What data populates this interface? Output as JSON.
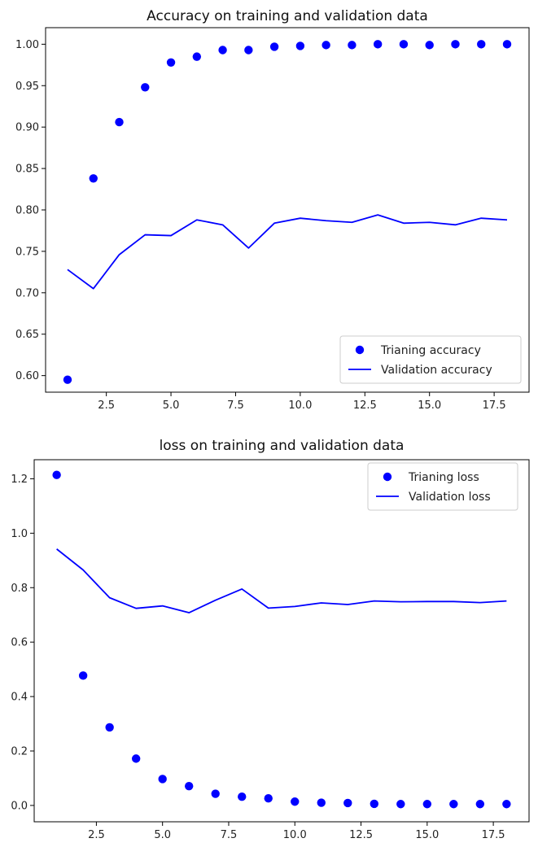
{
  "colors": {
    "series": "#0000ff",
    "axes": "#000000"
  },
  "chart_data": [
    {
      "type": "scatter+line",
      "title": "Accuracy on training and validation data",
      "xlabel": "",
      "ylabel": "",
      "xlim": [
        0.15,
        18.85
      ],
      "ylim": [
        0.58,
        1.02
      ],
      "xticks": [
        2.5,
        5.0,
        7.5,
        10.0,
        12.5,
        15.0,
        17.5
      ],
      "xtick_labels": [
        "2.5",
        "5.0",
        "7.5",
        "10.0",
        "12.5",
        "15.0",
        "17.5"
      ],
      "yticks": [
        0.6,
        0.65,
        0.7,
        0.75,
        0.8,
        0.85,
        0.9,
        0.95,
        1.0
      ],
      "ytick_labels": [
        "0.60",
        "0.65",
        "0.70",
        "0.75",
        "0.80",
        "0.85",
        "0.90",
        "0.95",
        "1.00"
      ],
      "legend_position": "lower-right",
      "series": [
        {
          "name": "Trianing accuracy",
          "style": "points",
          "x": [
            1,
            2,
            3,
            4,
            5,
            6,
            7,
            8,
            9,
            10,
            11,
            12,
            13,
            14,
            15,
            16,
            17,
            18
          ],
          "y": [
            0.595,
            0.838,
            0.906,
            0.948,
            0.978,
            0.985,
            0.993,
            0.993,
            0.997,
            0.998,
            0.999,
            0.999,
            1.0,
            1.0,
            0.999,
            1.0,
            1.0,
            1.0
          ]
        },
        {
          "name": "Validation accuracy",
          "style": "line",
          "x": [
            1,
            2,
            3,
            4,
            5,
            6,
            7,
            8,
            9,
            10,
            11,
            12,
            13,
            14,
            15,
            16,
            17,
            18
          ],
          "y": [
            0.728,
            0.705,
            0.746,
            0.77,
            0.769,
            0.788,
            0.782,
            0.754,
            0.784,
            0.79,
            0.787,
            0.785,
            0.794,
            0.784,
            0.785,
            0.782,
            0.79,
            0.788
          ]
        }
      ]
    },
    {
      "type": "scatter+line",
      "title": "loss on training and validation data",
      "xlabel": "",
      "ylabel": "",
      "xlim": [
        0.15,
        18.85
      ],
      "ylim": [
        -0.06,
        1.27
      ],
      "xticks": [
        2.5,
        5.0,
        7.5,
        10.0,
        12.5,
        15.0,
        17.5
      ],
      "xtick_labels": [
        "2.5",
        "5.0",
        "7.5",
        "10.0",
        "12.5",
        "15.0",
        "17.5"
      ],
      "yticks": [
        0.0,
        0.2,
        0.4,
        0.6,
        0.8,
        1.0,
        1.2
      ],
      "ytick_labels": [
        "0.0",
        "0.2",
        "0.4",
        "0.6",
        "0.8",
        "1.0",
        "1.2"
      ],
      "legend_position": "upper-right",
      "series": [
        {
          "name": "Trianing loss",
          "style": "points",
          "x": [
            1,
            2,
            3,
            4,
            5,
            6,
            7,
            8,
            9,
            10,
            11,
            12,
            13,
            14,
            15,
            16,
            17,
            18
          ],
          "y": [
            1.214,
            0.477,
            0.287,
            0.172,
            0.097,
            0.071,
            0.043,
            0.032,
            0.026,
            0.014,
            0.01,
            0.009,
            0.006,
            0.005,
            0.005,
            0.005,
            0.005,
            0.005
          ]
        },
        {
          "name": "Validation loss",
          "style": "line",
          "x": [
            1,
            2,
            3,
            4,
            5,
            6,
            7,
            8,
            9,
            10,
            11,
            12,
            13,
            14,
            15,
            16,
            17,
            18
          ],
          "y": [
            0.942,
            0.865,
            0.763,
            0.724,
            0.733,
            0.708,
            0.754,
            0.795,
            0.725,
            0.731,
            0.744,
            0.738,
            0.751,
            0.748,
            0.749,
            0.749,
            0.745,
            0.751
          ]
        }
      ]
    }
  ]
}
